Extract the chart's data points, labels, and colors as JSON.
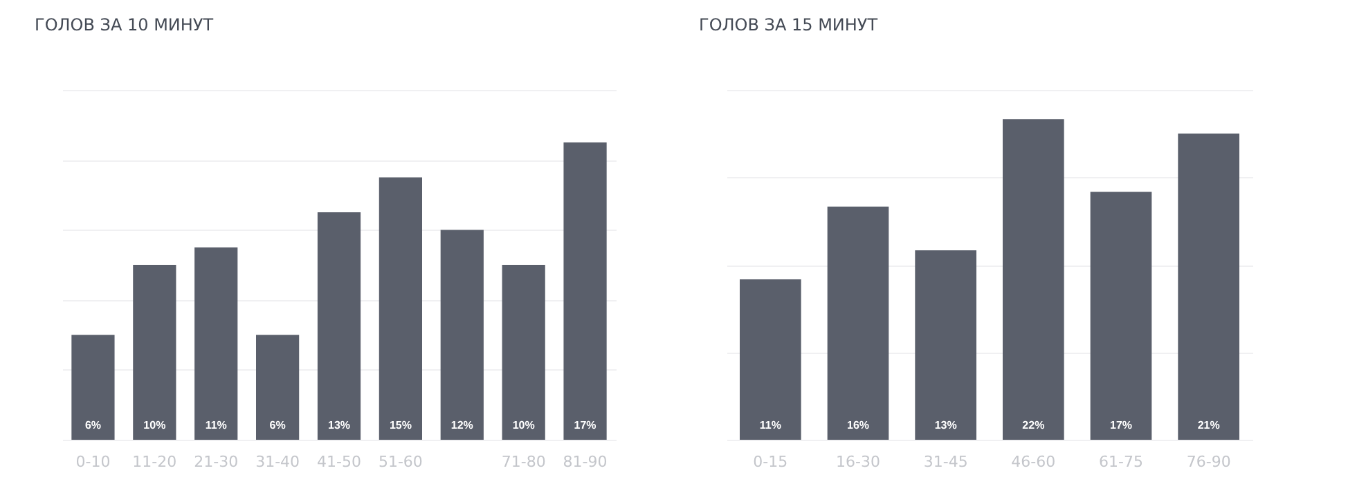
{
  "chart_data": [
    {
      "type": "bar",
      "title": "ГОЛОВ ЗА 10 МИНУТ",
      "categories": [
        "0-10",
        "11-20",
        "21-30",
        "31-40",
        "41-50",
        "51-60",
        null,
        "71-80",
        "81-90"
      ],
      "values": [
        6,
        10,
        11,
        6,
        13,
        15,
        12,
        10,
        17
      ],
      "value_labels": [
        "6%",
        "10%",
        "11%",
        "6%",
        "13%",
        "15%",
        "12%",
        "10%",
        "17%"
      ],
      "color": "#5a5f6b",
      "ylim": [
        0,
        20
      ],
      "yticks": [
        {
          "value": 0,
          "label": null
        },
        {
          "value": 4,
          "label": null
        },
        {
          "value": 8,
          "label": null
        },
        {
          "value": 12,
          "label": null
        },
        {
          "value": 16,
          "label": null
        },
        {
          "value": 20,
          "label": null
        }
      ],
      "grid": "y",
      "tick_labels": "x"
    },
    {
      "type": "bar",
      "title": "ГОЛОВ ЗА 15 МИНУТ",
      "categories": [
        "0-15",
        "16-30",
        "31-45",
        "46-60",
        "61-75",
        "76-90"
      ],
      "values": [
        11,
        16,
        13,
        22,
        17,
        21
      ],
      "value_labels": [
        "11%",
        "16%",
        "13%",
        "22%",
        "17%",
        "21%"
      ],
      "color": "#5a5f6b",
      "ylim": [
        0,
        24
      ],
      "yticks": [
        {
          "value": 0,
          "label": null
        },
        {
          "value": 6,
          "label": null
        },
        {
          "value": 12,
          "label": null
        },
        {
          "value": 18,
          "label": null
        },
        {
          "value": 24,
          "label": null
        }
      ],
      "grid": "y",
      "tick_labels": "x"
    }
  ]
}
